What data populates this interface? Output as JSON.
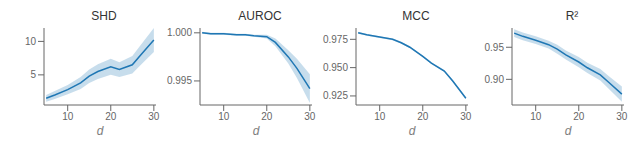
{
  "chart_data": [
    {
      "type": "line",
      "title": "SHD",
      "xlabel": "d",
      "x": [
        5,
        7,
        10,
        13,
        15,
        17,
        20,
        22,
        25,
        27,
        30
      ],
      "values": [
        1.5,
        2.0,
        2.8,
        3.8,
        4.8,
        5.5,
        6.2,
        5.8,
        6.5,
        8.0,
        10.2
      ],
      "errors": [
        0.5,
        0.6,
        0.7,
        0.9,
        1.0,
        1.1,
        1.2,
        1.1,
        1.3,
        1.5,
        1.8
      ],
      "color": "#1f77b4",
      "xlim": [
        4.5,
        30.5
      ],
      "xticks": [
        10,
        20,
        30
      ],
      "ylim": [
        0.5,
        12.0
      ],
      "yticks": [
        5,
        10
      ]
    },
    {
      "type": "line",
      "title": "AUROC",
      "xlabel": "d",
      "x": [
        5,
        7,
        10,
        13,
        15,
        17,
        20,
        22,
        25,
        27,
        30
      ],
      "values": [
        1.0,
        0.9999,
        0.9999,
        0.9998,
        0.9998,
        0.9997,
        0.9996,
        0.999,
        0.9975,
        0.9963,
        0.9942
      ],
      "errors": [
        0.0001,
        0.0001,
        0.0001,
        0.0001,
        0.0001,
        0.0001,
        0.0002,
        0.0004,
        0.0007,
        0.001,
        0.0015
      ],
      "color": "#1f77b4",
      "xlim": [
        4.5,
        30.5
      ],
      "xticks": [
        10,
        20,
        30
      ],
      "ylim": [
        0.9925,
        1.0005
      ],
      "yticks": [
        0.995,
        {
          "value": 1.0,
          "label": "1.000"
        }
      ]
    },
    {
      "type": "line",
      "title": "MCC",
      "xlabel": "d",
      "x": [
        5,
        7,
        10,
        13,
        15,
        17,
        20,
        22,
        25,
        27,
        30
      ],
      "values": [
        0.9808,
        0.979,
        0.977,
        0.975,
        0.972,
        0.968,
        0.96,
        0.954,
        0.947,
        0.938,
        0.923
      ],
      "errors": [
        0.0008,
        0.0008,
        0.0008,
        0.0008,
        0.0008,
        0.0008,
        0.0008,
        0.0008,
        0.0008,
        0.001,
        0.001
      ],
      "color": "#1f77b4",
      "xlim": [
        4.5,
        30.5
      ],
      "xticks": [
        10,
        20,
        30
      ],
      "ylim": [
        0.917,
        0.985
      ],
      "yticks": [
        0.925,
        {
          "value": 0.95,
          "label": "0.950"
        },
        0.975
      ]
    },
    {
      "type": "line",
      "title": "R²",
      "xlabel": "d",
      "x": [
        5,
        7,
        10,
        13,
        15,
        17,
        20,
        22,
        25,
        27,
        30
      ],
      "values": [
        0.972,
        0.967,
        0.961,
        0.954,
        0.947,
        0.938,
        0.927,
        0.918,
        0.907,
        0.895,
        0.877
      ],
      "errors": [
        0.006,
        0.006,
        0.006,
        0.006,
        0.007,
        0.007,
        0.008,
        0.008,
        0.009,
        0.01,
        0.012
      ],
      "color": "#1f77b4",
      "xlim": [
        4.5,
        30.5
      ],
      "xticks": [
        10,
        20,
        30
      ],
      "ylim": [
        0.86,
        0.98
      ],
      "yticks": [
        {
          "value": 0.9,
          "label": "0.90"
        },
        0.95
      ]
    }
  ]
}
